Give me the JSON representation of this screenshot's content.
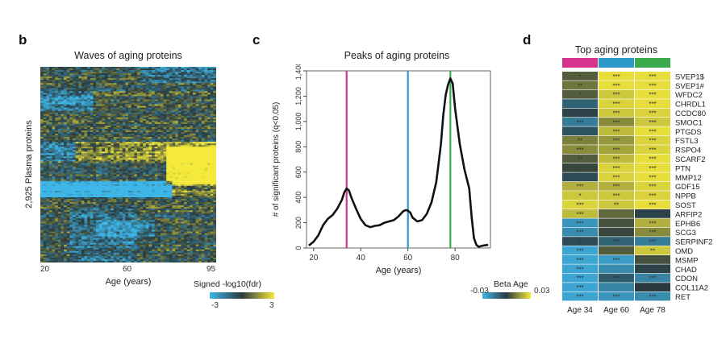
{
  "panels": {
    "b": {
      "letter": "b",
      "title": "Waves of aging proteins",
      "ylabel": "2,925 Plasma proteins",
      "xlabel": "Age (years)",
      "xticks": [
        "20",
        "60",
        "95"
      ],
      "colorbar": {
        "title": "Signed -log10(fdr)",
        "min": "-3",
        "max": "3"
      }
    },
    "c": {
      "letter": "c",
      "title": "Peaks of aging proteins"
    },
    "d": {
      "letter": "d",
      "title": "Top aging proteins",
      "colorbar": {
        "title": "Beta Age",
        "min": "-0.03",
        "max": "0.03"
      }
    }
  },
  "colors": {
    "heat_neg": "#3fb6e8",
    "heat_mid": "#2a3a3e",
    "heat_pos": "#f5ea3c",
    "line": "#111111",
    "vline_34": "#d6338f",
    "vline_60": "#2a9bc9",
    "vline_78": "#3aaa4c"
  },
  "chart_data": [
    {
      "type": "heatmap",
      "panel": "b",
      "title": "Waves of aging proteins",
      "xlabel": "Age (years)",
      "ylabel": "2,925 Plasma proteins",
      "xlim": [
        20,
        95
      ],
      "row_count": 2925,
      "color_range": [
        -3,
        3
      ]
    },
    {
      "type": "line",
      "panel": "c",
      "title": "Peaks of aging proteins",
      "xlabel": "Age (years)",
      "ylabel": "# of significant proteins (q<0.05)",
      "xlim": [
        17,
        95
      ],
      "ylim": [
        0,
        1400
      ],
      "xticks": [
        20,
        40,
        60,
        80
      ],
      "yticks": [
        0,
        200,
        400,
        600,
        800,
        1000,
        1200,
        1400
      ],
      "ytick_labels": [
        "0",
        "200",
        "400",
        "600",
        "800",
        "1,000",
        "1,200",
        "1,400"
      ],
      "vlines": [
        34,
        60,
        78
      ],
      "x": [
        18,
        20,
        22,
        24,
        26,
        28,
        30,
        32,
        33,
        34,
        35,
        36,
        38,
        40,
        42,
        44,
        46,
        48,
        50,
        52,
        54,
        56,
        58,
        59,
        60,
        61,
        62,
        64,
        66,
        68,
        70,
        72,
        74,
        75,
        76,
        77,
        78,
        79,
        80,
        82,
        84,
        86,
        87,
        88,
        89,
        90,
        92,
        94
      ],
      "y": [
        20,
        50,
        100,
        180,
        230,
        260,
        310,
        380,
        440,
        470,
        455,
        400,
        310,
        230,
        180,
        165,
        175,
        180,
        200,
        210,
        220,
        250,
        290,
        300,
        295,
        280,
        240,
        210,
        220,
        270,
        360,
        520,
        820,
        1050,
        1210,
        1290,
        1340,
        1300,
        1100,
        820,
        620,
        470,
        250,
        80,
        25,
        10,
        20,
        25
      ]
    },
    {
      "type": "heatmap",
      "panel": "d",
      "title": "Top aging proteins",
      "columns": [
        "Age 34",
        "Age 60",
        "Age 78"
      ],
      "rows": [
        "SVEP1$",
        "SVEP1#",
        "WFDC2",
        "CHRDL1",
        "CCDC80",
        "SMOC1",
        "PTGDS",
        "FSTL3",
        "RSPO4",
        "SCARF2",
        "PTN",
        "MMP12",
        "GDF15",
        "NPPB",
        "SOST",
        "ARFIP2",
        "EPHB6",
        "SCG3",
        "SERPINF2",
        "OMD",
        "MSMP",
        "CHAD",
        "CDON",
        "COL11A2",
        "RET"
      ],
      "values": [
        [
          0.006,
          0.028,
          0.028
        ],
        [
          0.01,
          0.028,
          0.028
        ],
        [
          0.006,
          0.024,
          0.028
        ],
        [
          -0.01,
          0.026,
          0.028
        ],
        [
          -0.002,
          0.024,
          0.026
        ],
        [
          -0.016,
          0.014,
          0.024
        ],
        [
          -0.006,
          0.022,
          0.028
        ],
        [
          0.012,
          0.016,
          0.026
        ],
        [
          0.014,
          0.018,
          0.026
        ],
        [
          0.006,
          0.022,
          0.028
        ],
        [
          0.002,
          0.026,
          0.028
        ],
        [
          -0.004,
          0.026,
          0.028
        ],
        [
          0.02,
          0.02,
          0.026
        ],
        [
          0.024,
          0.024,
          0.026
        ],
        [
          0.026,
          0.024,
          0.028
        ],
        [
          0.022,
          0.008,
          -0.002
        ],
        [
          -0.022,
          0.004,
          0.02
        ],
        [
          -0.02,
          0.002,
          0.014
        ],
        [
          -0.004,
          -0.01,
          -0.016
        ],
        [
          -0.026,
          0.006,
          0.024
        ],
        [
          -0.026,
          -0.024,
          0.004
        ],
        [
          -0.026,
          -0.02,
          -0.002
        ],
        [
          -0.026,
          -0.008,
          -0.018
        ],
        [
          -0.026,
          -0.018,
          0.0
        ],
        [
          -0.026,
          -0.022,
          -0.02
        ]
      ],
      "stars": [
        [
          "*",
          "***",
          "***"
        ],
        [
          "**",
          "***",
          "***"
        ],
        [
          "*",
          "***",
          "***"
        ],
        [
          "",
          "***",
          "***"
        ],
        [
          "**",
          "***",
          "***"
        ],
        [
          "***",
          "***",
          "***"
        ],
        [
          "",
          "***",
          "***"
        ],
        [
          "**",
          "***",
          "***"
        ],
        [
          "***",
          "***",
          "***"
        ],
        [
          "**",
          "***",
          "***"
        ],
        [
          "*",
          "***",
          "***"
        ],
        [
          "",
          "***",
          "***"
        ],
        [
          "***",
          "***",
          "***"
        ],
        [
          "*",
          "***",
          "***"
        ],
        [
          "***",
          "**",
          "***"
        ],
        [
          "***",
          "",
          ""
        ],
        [
          "***",
          "",
          "***"
        ],
        [
          "***",
          "",
          "***"
        ],
        [
          "*",
          "***",
          "***"
        ],
        [
          "***",
          "",
          "**"
        ],
        [
          "***",
          "***",
          ""
        ],
        [
          "***",
          "",
          ""
        ],
        [
          "***",
          "***",
          "***"
        ],
        [
          "***",
          "",
          ""
        ],
        [
          "***",
          "***",
          "***"
        ]
      ],
      "color_range": [
        -0.03,
        0.03
      ]
    }
  ]
}
